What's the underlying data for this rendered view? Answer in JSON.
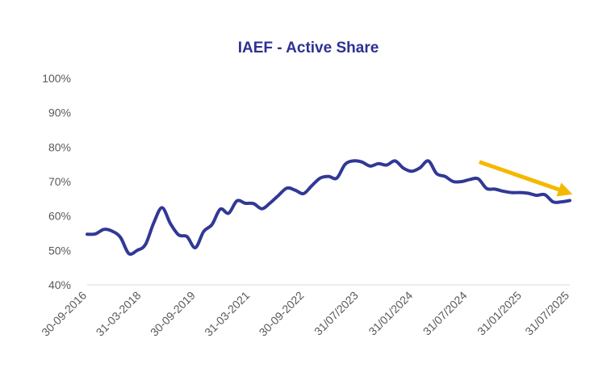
{
  "chart_data": {
    "type": "line",
    "title": "IAEF - Active Share",
    "xlabel": "",
    "ylabel": "",
    "ylim": [
      0.4,
      1.0
    ],
    "yticks": [
      {
        "value": 0.4,
        "label": "40%"
      },
      {
        "value": 0.5,
        "label": "50%"
      },
      {
        "value": 0.6,
        "label": "60%"
      },
      {
        "value": 0.7,
        "label": "70%"
      },
      {
        "value": 0.8,
        "label": "80%"
      },
      {
        "value": 0.9,
        "label": "90%"
      },
      {
        "value": 1.0,
        "label": "100%"
      }
    ],
    "xlim": [
      0,
      87
    ],
    "xticks": [
      {
        "index": 0,
        "label": "30-09-2016"
      },
      {
        "index": 9.8,
        "label": "31-03-2018"
      },
      {
        "index": 19.6,
        "label": "30-09-2019"
      },
      {
        "index": 29.4,
        "label": "31-03-2021"
      },
      {
        "index": 39.2,
        "label": "30-09-2022"
      },
      {
        "index": 49,
        "label": "31/07/2023"
      },
      {
        "index": 58.8,
        "label": "31/01/2024"
      },
      {
        "index": 68.6,
        "label": "31/07/2024"
      },
      {
        "index": 78.4,
        "label": "31/01/2025"
      },
      {
        "index": 87,
        "label": "31/07/2025"
      }
    ],
    "series": [
      {
        "name": "Active Share",
        "color": "#313895",
        "values": [
          0.547,
          0.548,
          0.561,
          0.556,
          0.538,
          0.491,
          0.5,
          0.517,
          0.58,
          0.624,
          0.578,
          0.545,
          0.54,
          0.508,
          0.555,
          0.575,
          0.62,
          0.608,
          0.644,
          0.637,
          0.636,
          0.621,
          0.638,
          0.66,
          0.681,
          0.675,
          0.665,
          0.688,
          0.71,
          0.715,
          0.71,
          0.75,
          0.76,
          0.757,
          0.745,
          0.752,
          0.748,
          0.76,
          0.739,
          0.73,
          0.74,
          0.76,
          0.723,
          0.715,
          0.7,
          0.7,
          0.706,
          0.708,
          0.68,
          0.678,
          0.672,
          0.668,
          0.668,
          0.666,
          0.66,
          0.662,
          0.641,
          0.641,
          0.645
        ]
      }
    ],
    "annotations": [
      {
        "type": "arrow",
        "color": "#F5B800",
        "from": {
          "index": 70.7,
          "value": 0.757
        },
        "to": {
          "index": 87.5,
          "value": 0.663
        }
      }
    ],
    "grid": false,
    "legend": "none"
  },
  "colors": {
    "title": "#2E3192",
    "line": "#313895",
    "arrow": "#F5B800",
    "axis": "#D9D9D9",
    "tick_text": "#595959"
  }
}
